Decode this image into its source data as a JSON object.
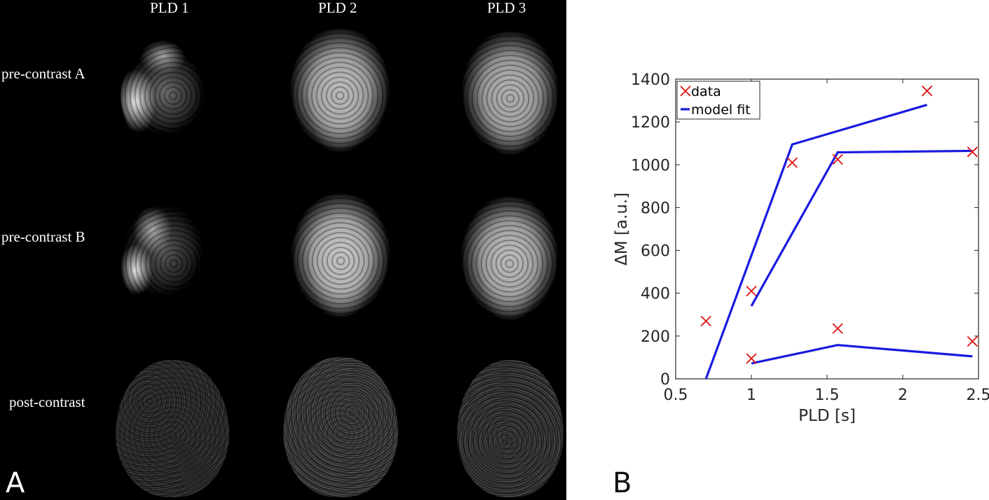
{
  "panel_a": {
    "letter": "A",
    "columns": [
      "PLD 1",
      "PLD  2",
      "PLD 3"
    ],
    "rows": [
      "pre-contrast A",
      "pre-contrast B",
      "post-contrast"
    ]
  },
  "panel_b": {
    "letter": "B"
  },
  "chart_data": {
    "type": "line",
    "xlabel": "PLD [s]",
    "ylabel": "ΔM [a.u.]",
    "xlim": [
      0.5,
      2.5
    ],
    "ylim": [
      0,
      1400
    ],
    "xticks": [
      0.5,
      1,
      1.5,
      2,
      2.5
    ],
    "xtick_labels": [
      "0.5",
      "1",
      "1.5",
      "2",
      "2.5"
    ],
    "yticks": [
      0,
      200,
      400,
      600,
      800,
      1000,
      1200,
      1400
    ],
    "ytick_labels": [
      "0",
      "200",
      "400",
      "600",
      "800",
      "1000",
      "1200",
      "1400"
    ],
    "legend": {
      "position": "top-left",
      "entries": [
        "data",
        "model fit"
      ]
    },
    "colors": {
      "data": "#dd1111",
      "fit": "#1a1ae0",
      "axis": "#262626",
      "brain_bg": "#000000"
    },
    "data_points": [
      {
        "x": 0.7,
        "y": 270
      },
      {
        "x": 1.0,
        "y": 410
      },
      {
        "x": 1.27,
        "y": 1010
      },
      {
        "x": 2.16,
        "y": 1345
      },
      {
        "x": 1.0,
        "y": 95
      },
      {
        "x": 1.57,
        "y": 1025
      },
      {
        "x": 2.46,
        "y": 1060
      },
      {
        "x": 1.57,
        "y": 235
      },
      {
        "x": 2.46,
        "y": 175
      }
    ],
    "fit_lines": [
      {
        "x": [
          0.7,
          1.27,
          2.16
        ],
        "y": [
          0,
          1095,
          1280
        ]
      },
      {
        "x": [
          1.0,
          1.57,
          2.46
        ],
        "y": [
          340,
          1058,
          1065
        ]
      },
      {
        "x": [
          1.0,
          1.57,
          2.46
        ],
        "y": [
          72,
          158,
          105
        ]
      }
    ]
  }
}
